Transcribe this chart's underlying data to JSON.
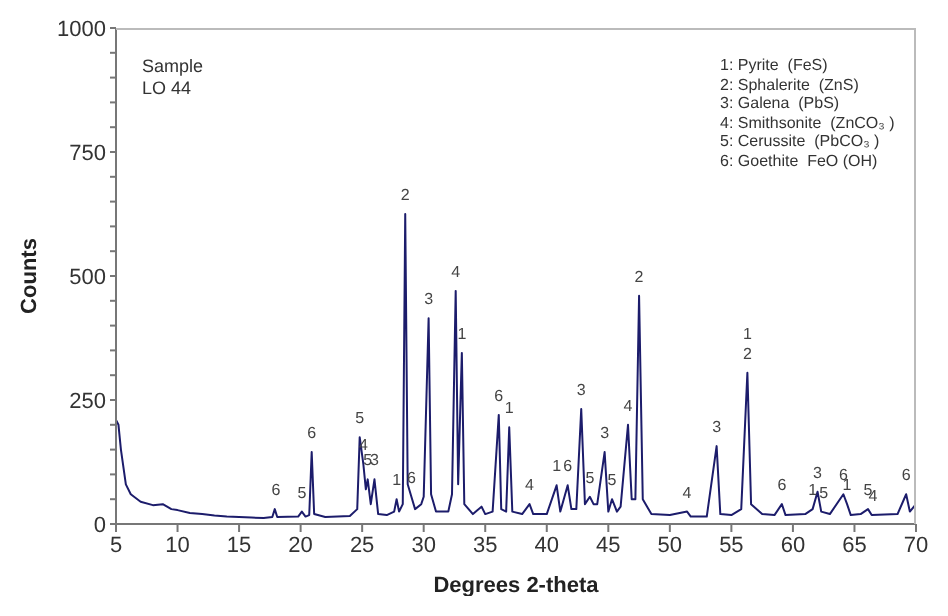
{
  "chart_data": {
    "type": "line",
    "xlabel": "Degrees 2-theta",
    "ylabel": "Counts",
    "xlim": [
      5,
      70
    ],
    "xticks": [
      5,
      10,
      15,
      20,
      25,
      30,
      35,
      40,
      45,
      50,
      55,
      60,
      65,
      70
    ],
    "ylim": [
      0,
      1000
    ],
    "yticks": [
      0,
      {
        "value": 50,
        "label": null
      },
      {
        "value": 100,
        "label": null
      },
      {
        "value": 150,
        "label": null
      },
      {
        "value": 200,
        "label": null
      },
      250,
      {
        "value": 300,
        "label": null
      },
      {
        "value": 350,
        "label": null
      },
      {
        "value": 400,
        "label": null
      },
      {
        "value": 450,
        "label": null
      },
      500,
      {
        "value": 550,
        "label": null
      },
      {
        "value": 600,
        "label": null
      },
      {
        "value": 650,
        "label": null
      },
      {
        "value": 700,
        "label": null
      },
      750,
      {
        "value": 800,
        "label": null
      },
      {
        "value": 850,
        "label": null
      },
      {
        "value": 900,
        "label": null
      },
      {
        "value": 950,
        "label": null
      },
      1000
    ],
    "grid": false,
    "marker": "none",
    "line_style": "solid",
    "series": [
      {
        "color": "#1c1c6b",
        "x": [
          5.0,
          5.2,
          5.4,
          5.8,
          6.2,
          7,
          8,
          8.8,
          9.5,
          10,
          11,
          12,
          13,
          14,
          15,
          16,
          17,
          17.7,
          17.9,
          18.1,
          19.8,
          20.1,
          20.4,
          20.7,
          20.9,
          21.1,
          22,
          23,
          24,
          24.6,
          24.8,
          25.1,
          25.3,
          25.45,
          25.7,
          26.0,
          26.3,
          27.0,
          27.6,
          27.8,
          28.0,
          28.3,
          28.5,
          28.7,
          29.0,
          29.3,
          29.8,
          30.0,
          30.4,
          30.6,
          31.0,
          32.0,
          32.3,
          32.6,
          32.8,
          33.1,
          33.3,
          34,
          34.7,
          35,
          35.6,
          36.1,
          36.3,
          36.7,
          36.95,
          37.2,
          38,
          38.6,
          38.9,
          40,
          40.8,
          41.1,
          41.7,
          42,
          42.4,
          42.8,
          43.1,
          43.5,
          43.8,
          44.1,
          44.7,
          45,
          45.3,
          45.7,
          46.0,
          46.6,
          46.9,
          47.2,
          47.5,
          47.8,
          48.5,
          50,
          51.4,
          51.7,
          53,
          53.8,
          54.1,
          55,
          55.8,
          56.3,
          56.6,
          57.5,
          58.5,
          59.1,
          59.4,
          61,
          61.6,
          62.0,
          62.3,
          63,
          64.1,
          64.4,
          64.7,
          65.5,
          66.1,
          66.4,
          68.5,
          69.2,
          69.5,
          70
        ],
        "values": [
          210,
          200,
          150,
          80,
          60,
          45,
          38,
          40,
          30,
          28,
          22,
          20,
          17,
          15,
          14,
          13,
          12,
          14,
          30,
          14,
          15,
          25,
          15,
          18,
          145,
          20,
          14,
          15,
          16,
          30,
          175,
          120,
          70,
          90,
          40,
          90,
          20,
          18,
          25,
          50,
          25,
          40,
          625,
          80,
          55,
          30,
          40,
          55,
          415,
          60,
          25,
          25,
          60,
          470,
          80,
          345,
          40,
          20,
          35,
          20,
          25,
          220,
          30,
          25,
          195,
          25,
          20,
          40,
          20,
          20,
          78,
          25,
          78,
          30,
          30,
          232,
          40,
          55,
          40,
          40,
          145,
          25,
          50,
          25,
          35,
          200,
          50,
          50,
          460,
          50,
          20,
          18,
          25,
          15,
          15,
          157,
          20,
          18,
          30,
          305,
          40,
          20,
          18,
          40,
          18,
          20,
          30,
          65,
          25,
          20,
          60,
          40,
          18,
          20,
          30,
          18,
          20,
          60,
          25,
          40
        ]
      }
    ],
    "annotations": [
      "Sample",
      "LO 44",
      "1: Pyrite  (FeS)",
      "2: Sphalerite  (ZnS)",
      "3: Galena  (PbS)",
      "4: Smithsonite  (ZnCO₃ )",
      "5: Cerussite  (PbCO₃ )",
      "6: Goethite  FeO (OH)",
      {
        "text": "6",
        "x": 18,
        "y": 30
      },
      {
        "text": "5",
        "x": 20.1,
        "y": 25
      },
      {
        "text": "6",
        "x": 20.9,
        "y": 145
      },
      {
        "text": "5",
        "x": 24.8,
        "y": 175
      },
      {
        "text": "4",
        "x": 25.1,
        "y": 120
      },
      {
        "text": "5",
        "x": 25.45,
        "y": 90
      },
      {
        "text": "3",
        "x": 26.0,
        "y": 90
      },
      {
        "text": "1",
        "x": 27.8,
        "y": 50
      },
      {
        "text": "6",
        "x": 29.0,
        "y": 55
      },
      {
        "text": "2",
        "x": 28.5,
        "y": 625
      },
      {
        "text": "3",
        "x": 30.4,
        "y": 415
      },
      {
        "text": "4",
        "x": 32.6,
        "y": 470
      },
      {
        "text": "1",
        "x": 33.1,
        "y": 345
      },
      {
        "text": "6",
        "x": 36.1,
        "y": 220
      },
      {
        "text": "1",
        "x": 36.95,
        "y": 195
      },
      {
        "text": "4",
        "x": 38.6,
        "y": 40
      },
      {
        "text": "1",
        "x": 40.8,
        "y": 78
      },
      {
        "text": "6",
        "x": 41.7,
        "y": 78
      },
      {
        "text": "3",
        "x": 42.8,
        "y": 232
      },
      {
        "text": "5",
        "x": 43.5,
        "y": 55
      },
      {
        "text": "3",
        "x": 44.7,
        "y": 145
      },
      {
        "text": "5",
        "x": 45.3,
        "y": 50
      },
      {
        "text": "4",
        "x": 46.6,
        "y": 200
      },
      {
        "text": "2",
        "x": 47.5,
        "y": 460
      },
      {
        "text": "4",
        "x": 51.4,
        "y": 25
      },
      {
        "text": "3",
        "x": 53.8,
        "y": 157
      },
      {
        "text": "2",
        "x": 56.3,
        "y": 305
      },
      {
        "text": "1",
        "x": 56.3,
        "y": 305
      },
      {
        "text": "6",
        "x": 59.1,
        "y": 40
      },
      {
        "text": "1",
        "x": 61.6,
        "y": 30
      },
      {
        "text": "3",
        "x": 62.0,
        "y": 65
      },
      {
        "text": "5",
        "x": 62.5,
        "y": 25
      },
      {
        "text": "6",
        "x": 64.1,
        "y": 60
      },
      {
        "text": "1",
        "x": 64.4,
        "y": 40
      },
      {
        "text": "5",
        "x": 66.1,
        "y": 30
      },
      {
        "text": "4",
        "x": 66.5,
        "y": 18
      },
      {
        "text": "6",
        "x": 69.2,
        "y": 60
      }
    ]
  }
}
